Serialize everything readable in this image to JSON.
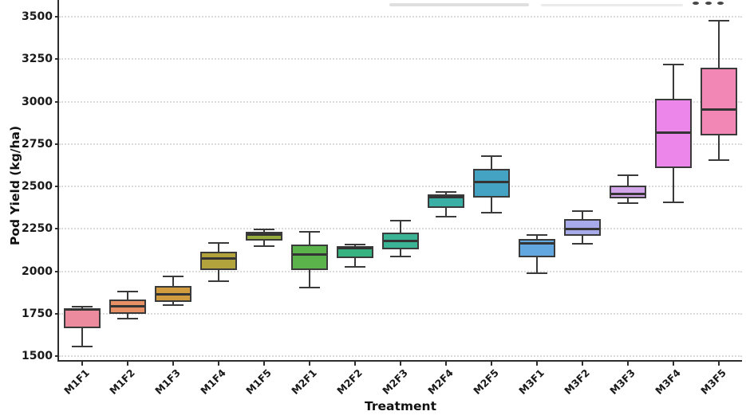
{
  "figure": {
    "xlabel": "Treatment",
    "ylabel": "Pod Yield (kg/ha)",
    "top_crop_marks": "three dot remnants of cropped title row"
  },
  "chart_data": {
    "type": "box",
    "title": "",
    "xlabel": "Treatment",
    "ylabel": "Pod Yield (kg/ha)",
    "ylim": [
      1470,
      3560
    ],
    "y_ticks": [
      1500,
      1750,
      2000,
      2250,
      2500,
      2750,
      3000,
      3250,
      3500
    ],
    "grid": "horizontal dotted, light gray",
    "legend": "none",
    "x_tick_rotation": 45,
    "categories": [
      "M1F1",
      "M1F2",
      "M1F3",
      "M1F4",
      "M1F5",
      "M2F1",
      "M2F2",
      "M2F3",
      "M2F4",
      "M2F5",
      "M3F1",
      "M3F2",
      "M3F3",
      "M3F4",
      "M3F5"
    ],
    "boxes": [
      {
        "category": "M1F1",
        "min": 1556,
        "q1": 1667,
        "median": 1778,
        "q3": 1784,
        "max": 1793,
        "color": "#ec8b9d"
      },
      {
        "category": "M1F2",
        "min": 1722,
        "q1": 1750,
        "median": 1793,
        "q3": 1836,
        "max": 1882,
        "color": "#e79066"
      },
      {
        "category": "M1F3",
        "min": 1800,
        "q1": 1822,
        "median": 1863,
        "q3": 1914,
        "max": 1972,
        "color": "#d19c3f"
      },
      {
        "category": "M1F4",
        "min": 1943,
        "q1": 2010,
        "median": 2078,
        "q3": 2118,
        "max": 2166,
        "color": "#b2a33d"
      },
      {
        "category": "M1F5",
        "min": 2148,
        "q1": 2182,
        "median": 2216,
        "q3": 2231,
        "max": 2248,
        "color": "#96ad3e"
      },
      {
        "category": "M2F1",
        "min": 1905,
        "q1": 2006,
        "median": 2099,
        "q3": 2159,
        "max": 2234,
        "color": "#5ab44b"
      },
      {
        "category": "M2F2",
        "min": 2028,
        "q1": 2078,
        "median": 2136,
        "q3": 2148,
        "max": 2157,
        "color": "#36b381"
      },
      {
        "category": "M2F3",
        "min": 2088,
        "q1": 2130,
        "median": 2180,
        "q3": 2230,
        "max": 2297,
        "color": "#3bb495"
      },
      {
        "category": "M2F4",
        "min": 2323,
        "q1": 2375,
        "median": 2437,
        "q3": 2453,
        "max": 2469,
        "color": "#3aafa6"
      },
      {
        "category": "M2F5",
        "min": 2345,
        "q1": 2437,
        "median": 2528,
        "q3": 2606,
        "max": 2677,
        "color": "#44a2c3"
      },
      {
        "category": "M3F1",
        "min": 1990,
        "q1": 2082,
        "median": 2167,
        "q3": 2192,
        "max": 2216,
        "color": "#62a7e0"
      },
      {
        "category": "M3F2",
        "min": 2165,
        "q1": 2211,
        "median": 2250,
        "q3": 2307,
        "max": 2355,
        "color": "#a7abe9"
      },
      {
        "category": "M3F3",
        "min": 2403,
        "q1": 2430,
        "median": 2458,
        "q3": 2505,
        "max": 2567,
        "color": "#d3a6e9"
      },
      {
        "category": "M3F4",
        "min": 2405,
        "q1": 2609,
        "median": 2817,
        "q3": 3015,
        "max": 3219,
        "color": "#ec86ea"
      },
      {
        "category": "M3F5",
        "min": 2653,
        "q1": 2802,
        "median": 2953,
        "q3": 3200,
        "max": 3477,
        "color": "#f287b5"
      }
    ]
  }
}
